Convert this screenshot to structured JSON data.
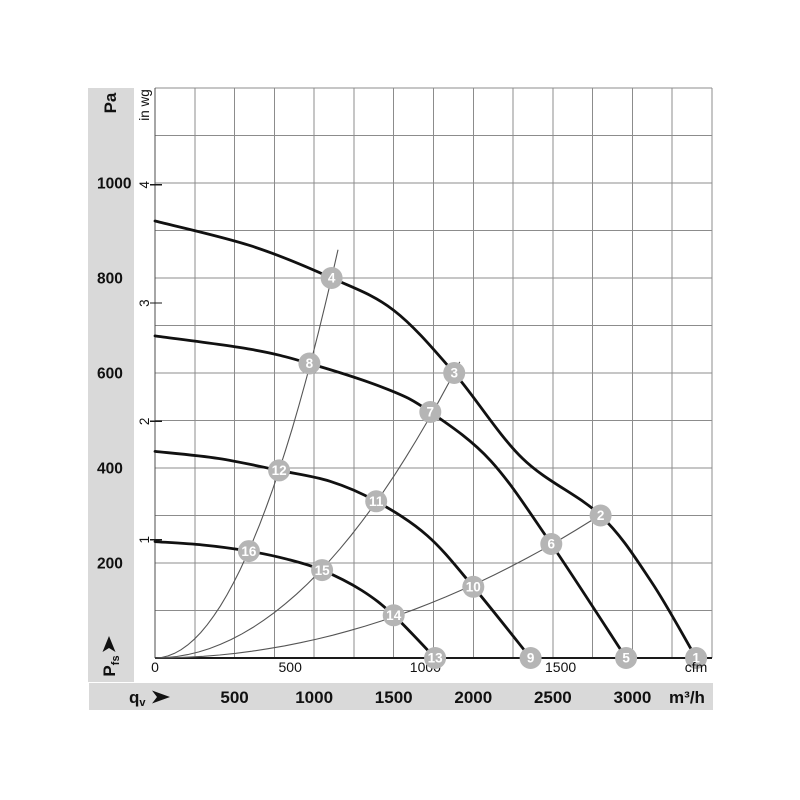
{
  "page": {
    "background": "#ffffff"
  },
  "colors": {
    "band": "#d9d9d9",
    "grid": "#8c8c8c",
    "axis": "#1a1a1a",
    "fan_curve": "#111111",
    "system_curve": "#555555",
    "marker_fill": "#b5b5b5",
    "marker_text": "#ffffff",
    "text": "#111111"
  },
  "labels": {
    "pa_unit": "Pa",
    "inwg_unit": "in wg",
    "pfs_main": "P",
    "pfs_sub": "fs",
    "qv_main": "q",
    "qv_sub": "v",
    "cfm_unit": "cfm",
    "m3h_unit": "m³/h"
  },
  "chart_data": {
    "type": "line",
    "title": "",
    "grid_on": true,
    "x_axis": {
      "unit_primary": "m³/h",
      "ticks_m3h": [
        500,
        1000,
        1500,
        2000,
        2500,
        3000
      ],
      "unit_secondary": "cfm",
      "ticks_cfm": [
        0,
        500,
        1000,
        1500
      ],
      "range_m3h": [
        0,
        3500
      ]
    },
    "y_axis": {
      "unit_primary": "Pa",
      "ticks_pa": [
        200,
        400,
        600,
        800,
        1000
      ],
      "unit_secondary": "in wg",
      "ticks_inwg": [
        1,
        2,
        3,
        4
      ],
      "range_pa": [
        0,
        1200
      ]
    },
    "grid": {
      "columns": 14,
      "rows": 12,
      "m3h_per_column": 250,
      "pa_per_row": 100
    },
    "fan_curves": [
      {
        "name": "fan-curve-1",
        "points": [
          [
            0,
            920
          ],
          [
            600,
            868
          ],
          [
            1110,
            800
          ],
          [
            1500,
            732
          ],
          [
            1880,
            600
          ],
          [
            2310,
            420
          ],
          [
            2800,
            300
          ],
          [
            3120,
            160
          ],
          [
            3400,
            0
          ]
        ]
      },
      {
        "name": "fan-curve-2",
        "points": [
          [
            0,
            678
          ],
          [
            600,
            650
          ],
          [
            970,
            620
          ],
          [
            1460,
            566
          ],
          [
            1730,
            518
          ],
          [
            2110,
            415
          ],
          [
            2490,
            240
          ],
          [
            2960,
            0
          ]
        ]
      },
      {
        "name": "fan-curve-3",
        "points": [
          [
            0,
            435
          ],
          [
            400,
            420
          ],
          [
            780,
            395
          ],
          [
            1100,
            372
          ],
          [
            1390,
            330
          ],
          [
            1710,
            258
          ],
          [
            2000,
            150
          ],
          [
            2360,
            0
          ]
        ]
      },
      {
        "name": "fan-curve-4",
        "points": [
          [
            0,
            245
          ],
          [
            300,
            238
          ],
          [
            590,
            225
          ],
          [
            830,
            208
          ],
          [
            1050,
            185
          ],
          [
            1300,
            142
          ],
          [
            1500,
            90
          ],
          [
            1760,
            0
          ]
        ]
      }
    ],
    "system_curves": [
      {
        "name": "system-curve-steep",
        "k": 0.00065,
        "q_end": 1150
      },
      {
        "name": "system-curve-mid",
        "k": 0.00017,
        "q_end": 1915
      },
      {
        "name": "system-curve-flat",
        "k": 3.85e-05,
        "q_end": 2845
      }
    ],
    "operating_points": [
      {
        "label": "1",
        "m3h": 3400,
        "pa": 0
      },
      {
        "label": "2",
        "m3h": 2800,
        "pa": 300
      },
      {
        "label": "3",
        "m3h": 1880,
        "pa": 600
      },
      {
        "label": "4",
        "m3h": 1110,
        "pa": 800
      },
      {
        "label": "5",
        "m3h": 2960,
        "pa": 0
      },
      {
        "label": "6",
        "m3h": 2490,
        "pa": 240
      },
      {
        "label": "7",
        "m3h": 1730,
        "pa": 518
      },
      {
        "label": "8",
        "m3h": 970,
        "pa": 620
      },
      {
        "label": "9",
        "m3h": 2360,
        "pa": 0
      },
      {
        "label": "10",
        "m3h": 2000,
        "pa": 150
      },
      {
        "label": "11",
        "m3h": 1390,
        "pa": 330
      },
      {
        "label": "12",
        "m3h": 780,
        "pa": 395
      },
      {
        "label": "13",
        "m3h": 1760,
        "pa": 0
      },
      {
        "label": "14",
        "m3h": 1500,
        "pa": 90
      },
      {
        "label": "15",
        "m3h": 1050,
        "pa": 185
      },
      {
        "label": "16",
        "m3h": 590,
        "pa": 225
      }
    ]
  }
}
